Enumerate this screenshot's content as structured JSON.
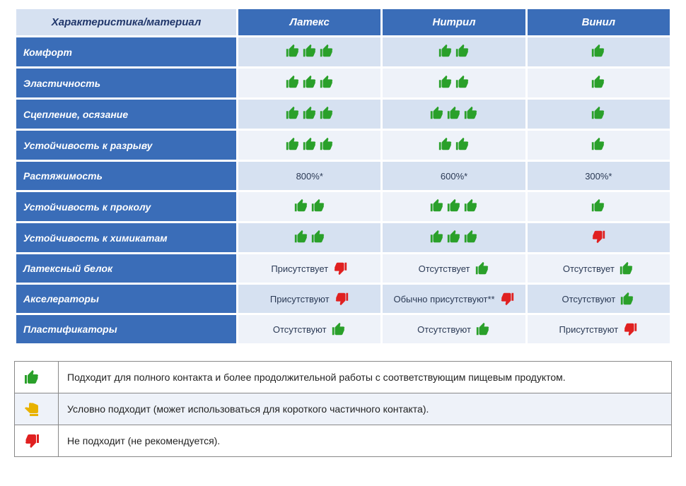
{
  "colors": {
    "header_bg": "#3a6db8",
    "header_text": "#ffffff",
    "corner_bg": "#d6e1f1",
    "corner_text": "#21376b",
    "band_a": "#d6e1f1",
    "band_b": "#eef2f9",
    "cell_text": "#2b3a55",
    "icon_green": "#2aa02a",
    "icon_red": "#e02020",
    "icon_yellow": "#e8b200",
    "legend_border": "#888888"
  },
  "table": {
    "corner": "Характеристика/материал",
    "columns": [
      "Латекс",
      "Нитрил",
      "Винил"
    ],
    "rows": [
      {
        "label": "Комфорт",
        "band": "a",
        "cells": [
          {
            "type": "thumbs",
            "count": 3,
            "dir": "up",
            "color": "green"
          },
          {
            "type": "thumbs",
            "count": 2,
            "dir": "up",
            "color": "green"
          },
          {
            "type": "thumbs",
            "count": 1,
            "dir": "up",
            "color": "green"
          }
        ]
      },
      {
        "label": "Эластичность",
        "band": "b",
        "cells": [
          {
            "type": "thumbs",
            "count": 3,
            "dir": "up",
            "color": "green"
          },
          {
            "type": "thumbs",
            "count": 2,
            "dir": "up",
            "color": "green"
          },
          {
            "type": "thumbs",
            "count": 1,
            "dir": "up",
            "color": "green"
          }
        ]
      },
      {
        "label": "Сцепление, осязание",
        "band": "a",
        "cells": [
          {
            "type": "thumbs",
            "count": 3,
            "dir": "up",
            "color": "green"
          },
          {
            "type": "thumbs",
            "count": 3,
            "dir": "up",
            "color": "green"
          },
          {
            "type": "thumbs",
            "count": 1,
            "dir": "up",
            "color": "green"
          }
        ]
      },
      {
        "label": "Устойчивость к разрыву",
        "band": "b",
        "cells": [
          {
            "type": "thumbs",
            "count": 3,
            "dir": "up",
            "color": "green"
          },
          {
            "type": "thumbs",
            "count": 2,
            "dir": "up",
            "color": "green"
          },
          {
            "type": "thumbs",
            "count": 1,
            "dir": "up",
            "color": "green"
          }
        ]
      },
      {
        "label": "Растяжимость",
        "band": "a",
        "cells": [
          {
            "type": "text",
            "text": "800%*"
          },
          {
            "type": "text",
            "text": "600%*"
          },
          {
            "type": "text",
            "text": "300%*"
          }
        ]
      },
      {
        "label": "Устойчивость к проколу",
        "band": "b",
        "cells": [
          {
            "type": "thumbs",
            "count": 2,
            "dir": "up",
            "color": "green"
          },
          {
            "type": "thumbs",
            "count": 3,
            "dir": "up",
            "color": "green"
          },
          {
            "type": "thumbs",
            "count": 1,
            "dir": "up",
            "color": "green"
          }
        ]
      },
      {
        "label": "Устойчивость к химикатам",
        "band": "a",
        "cells": [
          {
            "type": "thumbs",
            "count": 2,
            "dir": "up",
            "color": "green"
          },
          {
            "type": "thumbs",
            "count": 3,
            "dir": "up",
            "color": "green"
          },
          {
            "type": "thumbs",
            "count": 1,
            "dir": "down",
            "color": "red"
          }
        ]
      },
      {
        "label": "Латексный белок",
        "band": "b",
        "cells": [
          {
            "type": "text_icon",
            "text": "Присутствует",
            "dir": "down",
            "color": "red"
          },
          {
            "type": "text_icon",
            "text": "Отсутствует",
            "dir": "up",
            "color": "green"
          },
          {
            "type": "text_icon",
            "text": "Отсутствует",
            "dir": "up",
            "color": "green"
          }
        ]
      },
      {
        "label": "Акселераторы",
        "band": "a",
        "cells": [
          {
            "type": "text_icon",
            "text": "Присутствуют",
            "dir": "down",
            "color": "red"
          },
          {
            "type": "text_icon",
            "text": "Обычно присутствуют**",
            "dir": "down",
            "color": "red"
          },
          {
            "type": "text_icon",
            "text": "Отсутствуют",
            "dir": "up",
            "color": "green"
          }
        ]
      },
      {
        "label": "Пластификаторы",
        "band": "b",
        "cells": [
          {
            "type": "text_icon",
            "text": "Отсутствуют",
            "dir": "up",
            "color": "green"
          },
          {
            "type": "text_icon",
            "text": "Отсутствуют",
            "dir": "up",
            "color": "green"
          },
          {
            "type": "text_icon",
            "text": "Присутствуют",
            "dir": "down",
            "color": "red"
          }
        ]
      }
    ]
  },
  "legend": {
    "rows": [
      {
        "icon": {
          "dir": "up",
          "color": "green"
        },
        "band": "a",
        "text": "Подходит для полного контакта и более продолжительной работы с соответствующим пищевым продуктом."
      },
      {
        "icon": {
          "dir": "side",
          "color": "yellow"
        },
        "band": "b",
        "text": "Условно подходит (может использоваться для короткого частичного контакта)."
      },
      {
        "icon": {
          "dir": "down",
          "color": "red"
        },
        "band": "a",
        "text": "Не подходит (не рекомендуется)."
      }
    ]
  },
  "icon_size": {
    "main": 22,
    "legend": 24
  }
}
